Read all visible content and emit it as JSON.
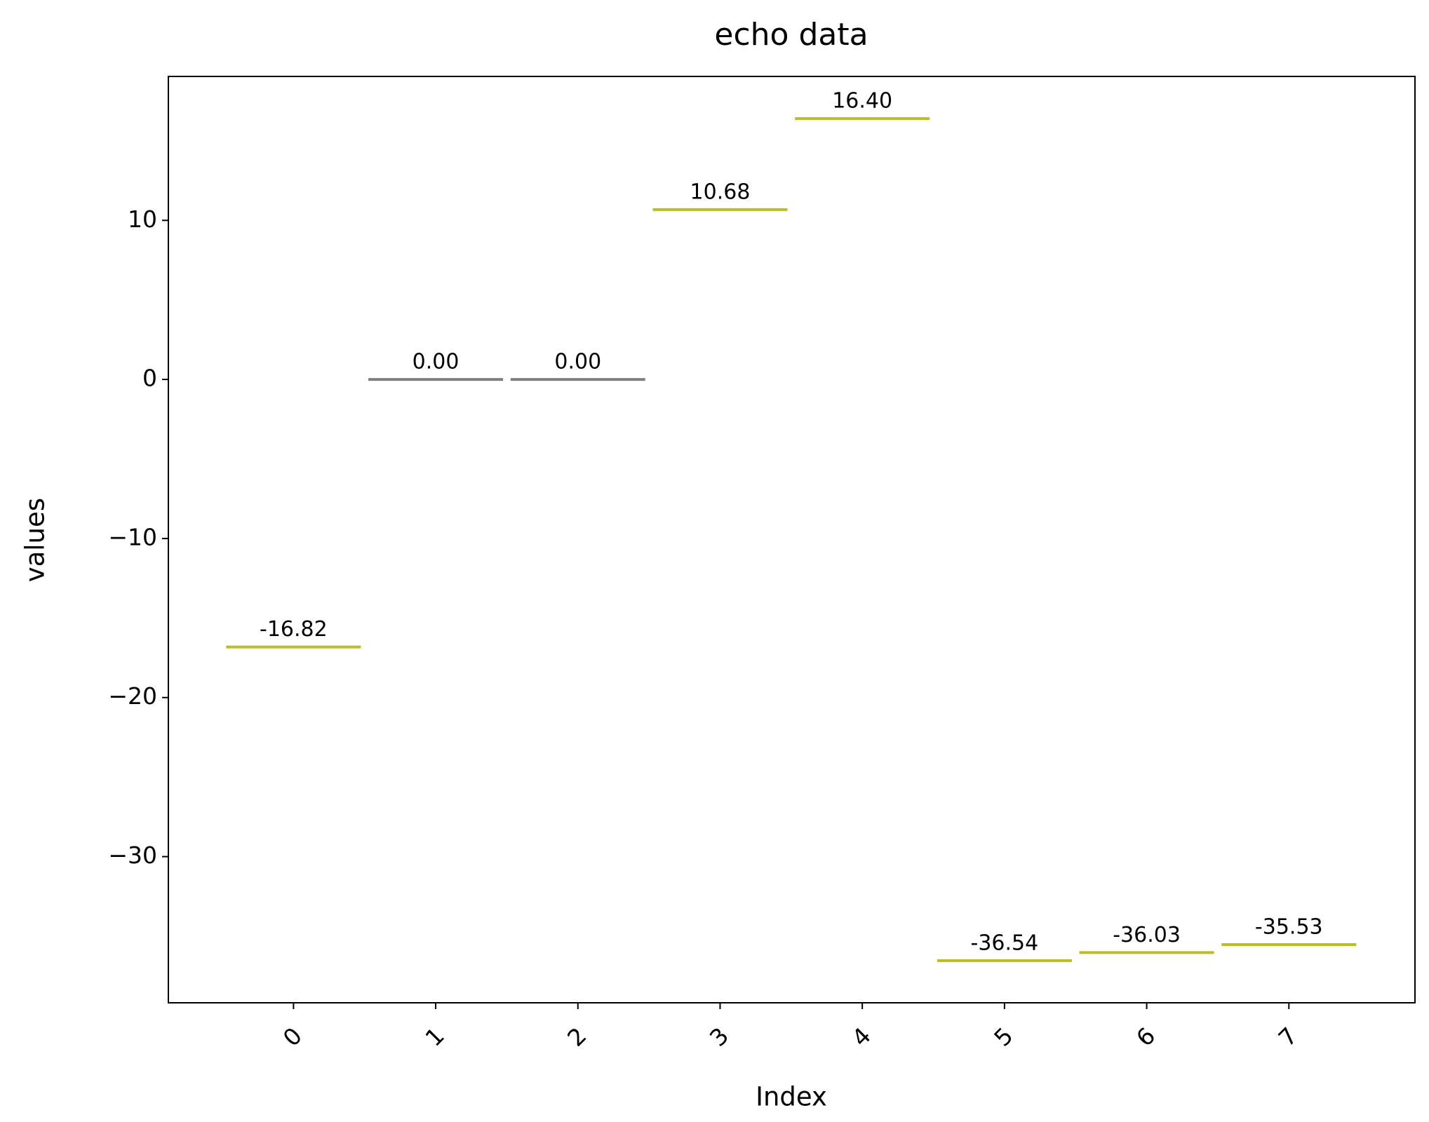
{
  "chart_data": {
    "type": "level",
    "title": "echo data",
    "x_label": "Index",
    "y_label": "values",
    "categories": [
      "0",
      "1",
      "2",
      "3",
      "4",
      "5",
      "6",
      "7"
    ],
    "values": [
      -16.82,
      0,
      0,
      10.68,
      16.4,
      -36.54,
      -36.03,
      -35.53
    ],
    "value_labels": [
      "-16.82",
      "0.00",
      "0.00",
      "10.68",
      "16.40",
      "-36.54",
      "-36.03",
      "-35.53"
    ],
    "colors": [
      "#bcbd22",
      "#7f7f7f",
      "#7f7f7f",
      "#bcbd22",
      "#bcbd22",
      "#bcbd22",
      "#bcbd22",
      "#bcbd22"
    ],
    "ylim": [
      -39.19,
      19.05
    ],
    "yticks": [
      {
        "value": -30,
        "label": "−30"
      },
      {
        "value": -20,
        "label": "−20"
      },
      {
        "value": -10,
        "label": "−10"
      },
      0,
      10
    ],
    "grid": false
  }
}
